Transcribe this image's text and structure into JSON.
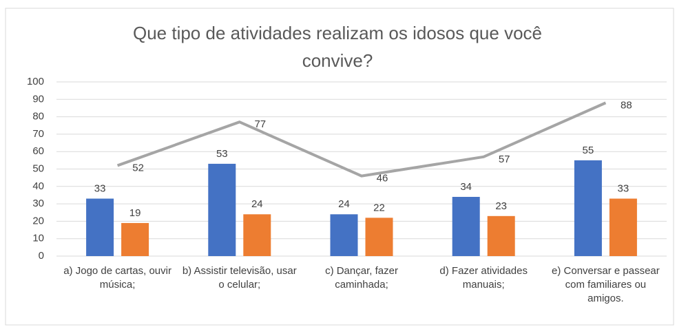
{
  "chart_data": {
    "type": "bar",
    "title": "Que tipo de atividades realizam os idosos que você convive?",
    "categories": [
      "a) Jogo de cartas, ouvir música;",
      "b) Assistir televisão, usar o celular;",
      "c) Dançar, fazer caminhada;",
      "d) Fazer atividades manuais;",
      "e) Conversar e passear com familiares ou amigos."
    ],
    "series": [
      {
        "type": "bar",
        "color": "#4472c4",
        "values": [
          33,
          53,
          24,
          34,
          55
        ]
      },
      {
        "type": "bar",
        "color": "#ed7d31",
        "values": [
          19,
          24,
          22,
          23,
          33
        ]
      },
      {
        "type": "line",
        "color": "#a5a5a5",
        "values": [
          52,
          77,
          46,
          57,
          88
        ]
      }
    ],
    "ylim": [
      0,
      100
    ],
    "yticks": [
      0,
      10,
      20,
      30,
      40,
      50,
      60,
      70,
      80,
      90,
      100
    ],
    "grid": true
  }
}
